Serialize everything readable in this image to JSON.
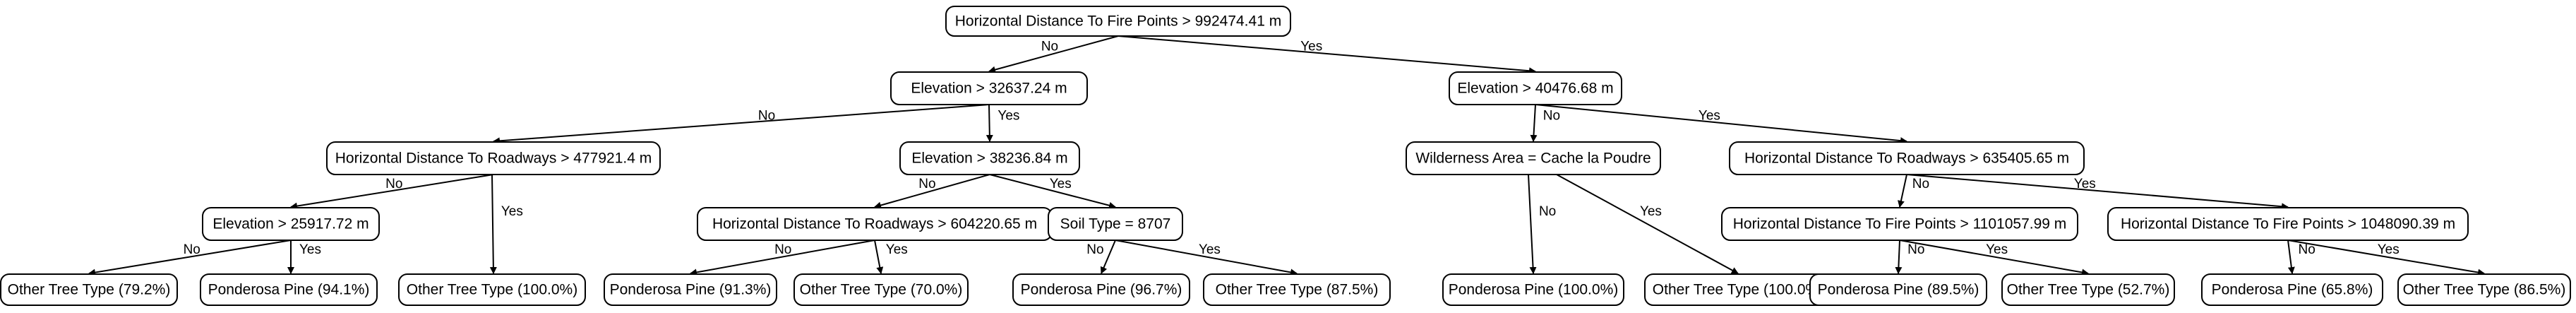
{
  "tree": {
    "nodes": {
      "n0": "Horizontal Distance To Fire Points > 992474.41 m",
      "n1": "Elevation > 32637.24 m",
      "n2": "Elevation > 40476.68 m",
      "n3": "Horizontal Distance To Roadways > 477921.4 m",
      "n4": "Elevation > 38236.84 m",
      "n5": "Wilderness Area = Cache la Poudre",
      "n6": "Horizontal Distance To Roadways > 635405.65 m",
      "n7": "Elevation > 25917.72 m",
      "n8": "Horizontal Distance To Roadways > 604220.65 m",
      "n9": "Soil Type = 8707",
      "n10": "Horizontal Distance To Fire Points > 1101057.99 m",
      "n11": "Horizontal Distance To Fire Points > 1048090.39 m",
      "l1": "Other Tree Type (79.2%)",
      "l2": "Ponderosa Pine (94.1%)",
      "l3": "Other Tree Type (100.0%)",
      "l4": "Ponderosa Pine (91.3%)",
      "l5": "Other Tree Type (70.0%)",
      "l6": "Ponderosa Pine (96.7%)",
      "l7": "Other Tree Type (87.5%)",
      "l8": "Ponderosa Pine (100.0%)",
      "l9": "Other Tree Type (100.0%)",
      "l10": "Ponderosa Pine (89.5%)",
      "l11": "Other Tree Type (52.7%)",
      "l12": "Ponderosa Pine (65.8%)",
      "l13": "Other Tree Type (86.5%)"
    },
    "edges": [
      {
        "from": "n0",
        "to": "n1",
        "label": "No"
      },
      {
        "from": "n0",
        "to": "n2",
        "label": "Yes"
      },
      {
        "from": "n1",
        "to": "n3",
        "label": "No"
      },
      {
        "from": "n1",
        "to": "n4",
        "label": "Yes"
      },
      {
        "from": "n2",
        "to": "n5",
        "label": "No"
      },
      {
        "from": "n2",
        "to": "n6",
        "label": "Yes"
      },
      {
        "from": "n3",
        "to": "n7",
        "label": "No"
      },
      {
        "from": "n3",
        "to": "l3",
        "label": "Yes"
      },
      {
        "from": "n4",
        "to": "n8",
        "label": "No"
      },
      {
        "from": "n4",
        "to": "n9",
        "label": "Yes"
      },
      {
        "from": "n5",
        "to": "l8",
        "label": "No"
      },
      {
        "from": "n5",
        "to": "l9",
        "label": "Yes"
      },
      {
        "from": "n6",
        "to": "n10",
        "label": "No"
      },
      {
        "from": "n6",
        "to": "n11",
        "label": "Yes"
      },
      {
        "from": "n7",
        "to": "l1",
        "label": "No"
      },
      {
        "from": "n7",
        "to": "l2",
        "label": "Yes"
      },
      {
        "from": "n8",
        "to": "l4",
        "label": "No"
      },
      {
        "from": "n8",
        "to": "l5",
        "label": "Yes"
      },
      {
        "from": "n9",
        "to": "l6",
        "label": "No"
      },
      {
        "from": "n9",
        "to": "l7",
        "label": "Yes"
      },
      {
        "from": "n10",
        "to": "l10",
        "label": "No"
      },
      {
        "from": "n10",
        "to": "l11",
        "label": "Yes"
      },
      {
        "from": "n11",
        "to": "l12",
        "label": "No"
      },
      {
        "from": "n11",
        "to": "l13",
        "label": "Yes"
      }
    ]
  }
}
